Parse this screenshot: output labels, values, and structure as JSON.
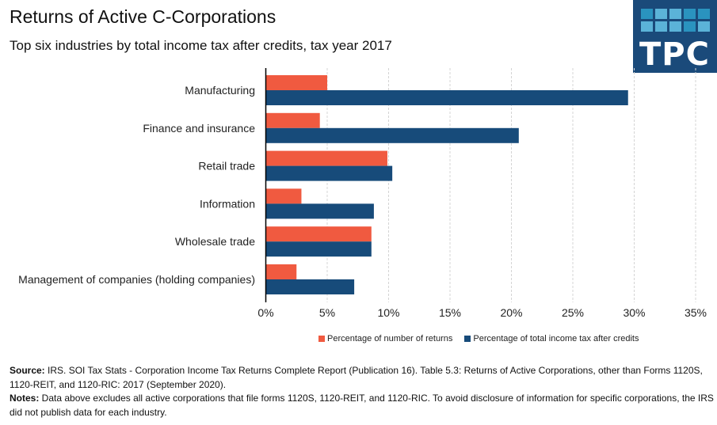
{
  "header": {
    "title": "Returns of Active C-Corporations",
    "subtitle": "Top six industries by total income tax after credits, tax year 2017"
  },
  "logo": {
    "text": "TPC",
    "colors": {
      "background": "#1a4a7a",
      "square_light": "#5bb3d8",
      "square_mid": "#2a93bf"
    }
  },
  "chart_data": {
    "type": "bar",
    "orientation": "horizontal",
    "title": "Returns of Active C-Corporations",
    "subtitle": "Top six industries by total income tax after credits, tax year 2017",
    "categories": [
      "Manufacturing",
      "Finance and insurance",
      "Retail trade",
      "Information",
      "Wholesale trade",
      "Management of companies (holding companies)"
    ],
    "series": [
      {
        "name": "Percentage of number of returns",
        "color": "#f05a40",
        "values": [
          5.0,
          4.4,
          9.9,
          2.9,
          8.6,
          2.5
        ]
      },
      {
        "name": "Percentage of total income tax after credits",
        "color": "#174b7a",
        "values": [
          29.5,
          20.6,
          10.3,
          8.8,
          8.6,
          7.2
        ]
      }
    ],
    "xlabel": "",
    "ylabel": "",
    "xlim": [
      0,
      35
    ],
    "xticks": [
      0,
      5,
      10,
      15,
      20,
      25,
      30,
      35
    ],
    "xtick_labels": [
      "0%",
      "5%",
      "10%",
      "15%",
      "20%",
      "25%",
      "30%",
      "35%"
    ],
    "grid": "vertical dashed",
    "legend_position": "bottom"
  },
  "footer": {
    "source_label": "Source:",
    "source_text": " IRS. SOI Tax Stats - Corporation Income Tax Returns Complete Report (Publication 16). Table 5.3: Returns of Active Corporations, other than Forms 1120S, 1120-REIT, and 1120-RIC: 2017 (September 2020).",
    "notes_label": "Notes:",
    "notes_text": " Data above excludes all active corporations that file forms 1120S, 1120-REIT, and 1120-RIC. To avoid disclosure of information for specific corporations, the IRS did not publish data for each industry."
  }
}
